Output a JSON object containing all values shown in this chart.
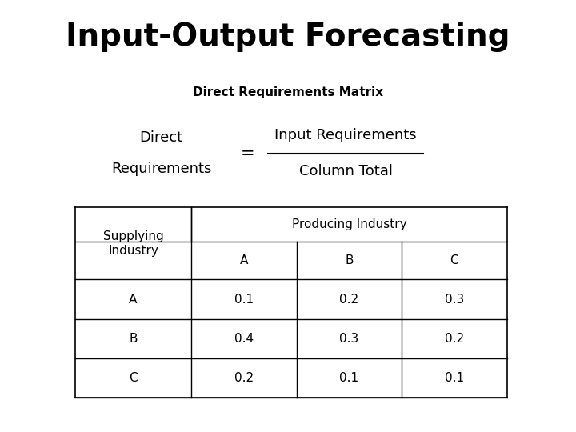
{
  "title": "Input-Output Forecasting",
  "subtitle": "Direct Requirements Matrix",
  "formula_left_line1": "Direct",
  "formula_left_line2": "Requirements",
  "formula_equals": "=",
  "formula_numerator": "Input Requirements",
  "formula_denominator": "Column Total",
  "table_col_header_span": "Producing Industry",
  "table_row_header": "Supplying\nIndustry",
  "table_col_labels": [
    "A",
    "B",
    "C"
  ],
  "table_row_labels": [
    "A",
    "B",
    "C"
  ],
  "table_data": [
    [
      0.1,
      0.2,
      0.3
    ],
    [
      0.4,
      0.3,
      0.2
    ],
    [
      0.2,
      0.1,
      0.1
    ]
  ],
  "background_color": "#ffffff",
  "title_fontsize": 28,
  "subtitle_fontsize": 11,
  "formula_fontsize": 13,
  "table_fontsize": 11
}
